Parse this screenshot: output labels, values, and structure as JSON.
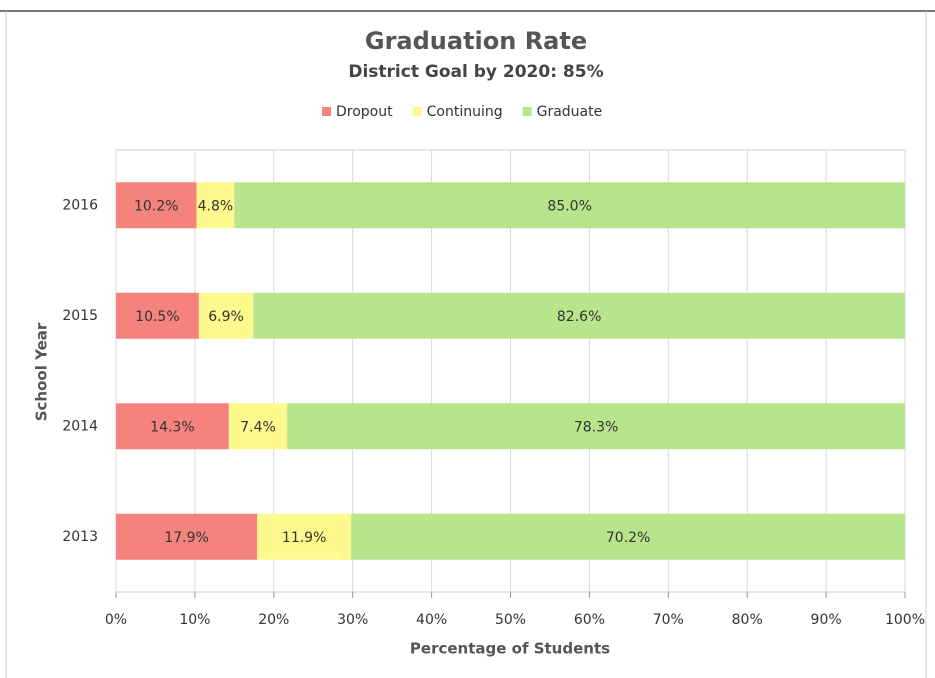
{
  "chart_data": {
    "type": "stacked_bar_horizontal",
    "title": "Graduation Rate",
    "subtitle": "District Goal by 2020: 85%",
    "x_label": "Percentage of Students",
    "y_label": "School Year",
    "categories": [
      "2016",
      "2015",
      "2014",
      "2013"
    ],
    "series": [
      {
        "name": "Dropout",
        "color": "#f4837d",
        "values": [
          10.2,
          10.5,
          14.3,
          17.9
        ],
        "value_labels": [
          "10.2%",
          "10.5%",
          "14.3%",
          "17.9%"
        ]
      },
      {
        "name": "Continuing",
        "color": "#fdf98c",
        "values": [
          4.8,
          6.9,
          7.4,
          11.9
        ],
        "value_labels": [
          "4.8%",
          "6.9%",
          "7.4%",
          "11.9%"
        ]
      },
      {
        "name": "Graduate",
        "color": "#b6e58b",
        "values": [
          85.0,
          82.6,
          78.3,
          70.2
        ],
        "value_labels": [
          "85.0%",
          "82.6%",
          "78.3%",
          "70.2%"
        ]
      }
    ],
    "xlim": [
      0,
      100
    ],
    "xticks": [
      {
        "value": 0,
        "label": "0%"
      },
      {
        "value": 10,
        "label": "10%"
      },
      {
        "value": 20,
        "label": "20%"
      },
      {
        "value": 30,
        "label": "30%"
      },
      {
        "value": 40,
        "label": "40%"
      },
      {
        "value": 50,
        "label": "50%"
      },
      {
        "value": 60,
        "label": "60%"
      },
      {
        "value": 70,
        "label": "70%"
      },
      {
        "value": 80,
        "label": "80%"
      },
      {
        "value": 90,
        "label": "90%"
      },
      {
        "value": 100,
        "label": "100%"
      }
    ],
    "grid": true,
    "legend": "top"
  }
}
